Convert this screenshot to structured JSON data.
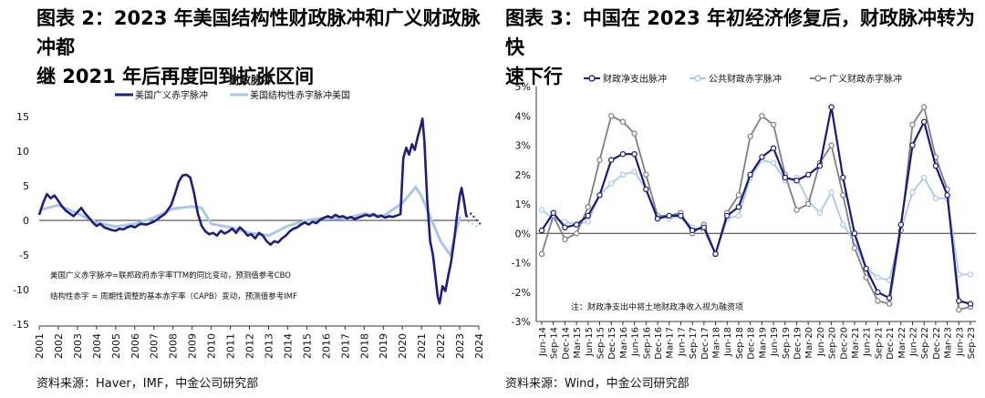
{
  "left": {
    "title_line1": "图表 2：2023 年美国结构性财政脉冲和广义财政脉冲都",
    "title_line2": "继 2021 年后再度回到扩张区间",
    "source": "资料来源：Haver，IMF，中金公司研究部",
    "chart_data": {
      "type": "line",
      "title": "财政脉冲",
      "unit_label": "（%）",
      "ylim": [
        -15,
        15
      ],
      "yticks": [
        15,
        10,
        5,
        0,
        -5,
        -10,
        -15
      ],
      "xlim": [
        2001,
        2024
      ],
      "xticks": [
        "2001",
        "2002",
        "2003",
        "2004",
        "2005",
        "2006",
        "2007",
        "2008",
        "2009",
        "2010",
        "2011",
        "2012",
        "2013",
        "2014",
        "2015",
        "2016",
        "2017",
        "2018",
        "2019",
        "2020",
        "2021",
        "2022",
        "2023",
        "2024"
      ],
      "notes": [
        "美国广义赤字脉冲=联邦政府赤字率TTM的同比变动，预测值参考CBO",
        "结构性赤字 = 周期性调整的基本赤字率（CAPB）变动，预测值参考IMF"
      ],
      "series": [
        {
          "name": "美国广义赤字脉冲",
          "color": "#1f1f7a",
          "points": [
            [
              2001.0,
              0.8
            ],
            [
              2001.2,
              2.5
            ],
            [
              2001.4,
              3.8
            ],
            [
              2001.6,
              3.2
            ],
            [
              2001.8,
              3.6
            ],
            [
              2002.0,
              2.8
            ],
            [
              2002.2,
              2.0
            ],
            [
              2002.4,
              1.4
            ],
            [
              2002.6,
              1.0
            ],
            [
              2002.8,
              0.6
            ],
            [
              2003.0,
              1.2
            ],
            [
              2003.2,
              1.8
            ],
            [
              2003.4,
              1.0
            ],
            [
              2003.6,
              0.4
            ],
            [
              2003.8,
              -0.3
            ],
            [
              2004.0,
              -0.8
            ],
            [
              2004.2,
              -0.5
            ],
            [
              2004.4,
              -1.0
            ],
            [
              2004.6,
              -1.2
            ],
            [
              2004.8,
              -1.4
            ],
            [
              2005.0,
              -1.5
            ],
            [
              2005.2,
              -1.2
            ],
            [
              2005.4,
              -1.3
            ],
            [
              2005.6,
              -1.0
            ],
            [
              2005.8,
              -0.8
            ],
            [
              2006.0,
              -1.0
            ],
            [
              2006.3,
              -0.5
            ],
            [
              2006.6,
              -0.6
            ],
            [
              2007.0,
              -0.2
            ],
            [
              2007.3,
              0.4
            ],
            [
              2007.6,
              1.0
            ],
            [
              2007.9,
              2.2
            ],
            [
              2008.1,
              3.8
            ],
            [
              2008.3,
              5.6
            ],
            [
              2008.5,
              6.5
            ],
            [
              2008.7,
              6.6
            ],
            [
              2008.9,
              6.2
            ],
            [
              2009.1,
              4.0
            ],
            [
              2009.3,
              1.0
            ],
            [
              2009.5,
              -0.8
            ],
            [
              2009.7,
              -1.6
            ],
            [
              2009.9,
              -2.0
            ],
            [
              2010.1,
              -1.8
            ],
            [
              2010.3,
              -2.2
            ],
            [
              2010.5,
              -1.5
            ],
            [
              2010.7,
              -1.9
            ],
            [
              2010.9,
              -1.6
            ],
            [
              2011.1,
              -1.2
            ],
            [
              2011.3,
              -1.8
            ],
            [
              2011.5,
              -1.0
            ],
            [
              2011.7,
              -1.5
            ],
            [
              2011.9,
              -2.2
            ],
            [
              2012.1,
              -2.0
            ],
            [
              2012.3,
              -2.6
            ],
            [
              2012.5,
              -1.8
            ],
            [
              2012.7,
              -2.2
            ],
            [
              2012.9,
              -3.0
            ],
            [
              2013.1,
              -3.5
            ],
            [
              2013.3,
              -3.0
            ],
            [
              2013.5,
              -3.2
            ],
            [
              2013.7,
              -2.6
            ],
            [
              2013.9,
              -2.2
            ],
            [
              2014.1,
              -1.6
            ],
            [
              2014.3,
              -1.2
            ],
            [
              2014.5,
              -1.0
            ],
            [
              2014.7,
              -0.6
            ],
            [
              2014.9,
              -0.3
            ],
            [
              2015.1,
              -0.6
            ],
            [
              2015.3,
              -0.2
            ],
            [
              2015.5,
              -0.4
            ],
            [
              2015.7,
              0.1
            ],
            [
              2015.9,
              0.4
            ],
            [
              2016.1,
              0.6
            ],
            [
              2016.3,
              0.4
            ],
            [
              2016.5,
              0.8
            ],
            [
              2016.7,
              0.5
            ],
            [
              2016.9,
              0.6
            ],
            [
              2017.1,
              0.3
            ],
            [
              2017.3,
              0.5
            ],
            [
              2017.5,
              0.2
            ],
            [
              2017.7,
              0.4
            ],
            [
              2017.9,
              0.6
            ],
            [
              2018.1,
              0.8
            ],
            [
              2018.3,
              0.6
            ],
            [
              2018.5,
              0.9
            ],
            [
              2018.7,
              0.5
            ],
            [
              2018.9,
              0.7
            ],
            [
              2019.1,
              0.4
            ],
            [
              2019.3,
              0.6
            ],
            [
              2019.5,
              0.5
            ],
            [
              2019.7,
              0.7
            ],
            [
              2019.9,
              0.9
            ],
            [
              2020.05,
              9.0
            ],
            [
              2020.2,
              10.5
            ],
            [
              2020.35,
              9.5
            ],
            [
              2020.5,
              11.0
            ],
            [
              2020.65,
              10.2
            ],
            [
              2020.8,
              12.0
            ],
            [
              2020.95,
              13.5
            ],
            [
              2021.05,
              14.7
            ],
            [
              2021.15,
              11.5
            ],
            [
              2021.3,
              3.0
            ],
            [
              2021.45,
              -3.0
            ],
            [
              2021.6,
              -5.0
            ],
            [
              2021.75,
              -8.5
            ],
            [
              2021.85,
              -11.0
            ],
            [
              2021.95,
              -12.0
            ],
            [
              2022.1,
              -9.5
            ],
            [
              2022.25,
              -10.2
            ],
            [
              2022.4,
              -8.0
            ],
            [
              2022.55,
              -6.0
            ],
            [
              2022.7,
              -3.0
            ],
            [
              2022.85,
              0.5
            ],
            [
              2023.0,
              3.5
            ],
            [
              2023.1,
              4.7
            ],
            [
              2023.2,
              3.2
            ],
            [
              2023.35,
              0.5
            ]
          ],
          "forecast": [
            [
              2023.35,
              0.5
            ],
            [
              2023.6,
              1.0
            ],
            [
              2023.9,
              0.0
            ],
            [
              2024.1,
              -0.6
            ]
          ]
        },
        {
          "name": "美国结构性赤字脉冲美国",
          "color": "#a9c7e8",
          "points": [
            [
              2001.0,
              1.5
            ],
            [
              2002.0,
              2.2
            ],
            [
              2003.0,
              1.0
            ],
            [
              2004.0,
              -0.3
            ],
            [
              2005.0,
              -0.9
            ],
            [
              2006.0,
              -0.5
            ],
            [
              2007.0,
              0.4
            ],
            [
              2008.0,
              1.7
            ],
            [
              2009.0,
              2.0
            ],
            [
              2009.5,
              1.8
            ],
            [
              2010.0,
              -0.5
            ],
            [
              2011.0,
              -1.0
            ],
            [
              2012.0,
              -1.8
            ],
            [
              2013.0,
              -2.2
            ],
            [
              2014.0,
              -0.8
            ],
            [
              2015.0,
              0.0
            ],
            [
              2016.0,
              0.4
            ],
            [
              2017.0,
              0.2
            ],
            [
              2018.0,
              1.0
            ],
            [
              2019.0,
              0.6
            ],
            [
              2020.0,
              2.5
            ],
            [
              2020.7,
              4.8
            ],
            [
              2021.0,
              3.5
            ],
            [
              2022.0,
              -3.0
            ],
            [
              2022.5,
              -5.0
            ],
            [
              2023.0,
              0.5
            ]
          ],
          "forecast": [
            [
              2023.0,
              0.5
            ],
            [
              2024.0,
              -1.0
            ]
          ]
        }
      ]
    }
  },
  "right": {
    "title_line1": "图表 3：中国在 2023 年初经济修复后，财政脉冲转为快",
    "title_line2": "速下行",
    "source": "资料来源：Wind，中金公司研究部",
    "chart_data": {
      "type": "line",
      "ylim": [
        -3,
        5
      ],
      "yticks": [
        "5%",
        "4%",
        "3%",
        "2%",
        "1%",
        "0%",
        "-1%",
        "-2%",
        "-3%"
      ],
      "categories": [
        "Jun-14",
        "Sep-14",
        "Dec-14",
        "Mar-15",
        "Jun-15",
        "Sep-15",
        "Dec-15",
        "Mar-16",
        "Jun-16",
        "Sep-16",
        "Dec-16",
        "Mar-17",
        "Jun-17",
        "Sep-17",
        "Dec-17",
        "Mar-18",
        "Jun-18",
        "Sep-18",
        "Dec-18",
        "Mar-19",
        "Jun-19",
        "Sep-19",
        "Dec-19",
        "Mar-20",
        "Jun-20",
        "Sep-20",
        "Dec-20",
        "Mar-21",
        "Jun-21",
        "Sep-21",
        "Dec-21",
        "Mar-22",
        "Jun-22",
        "Sep-22",
        "Dec-22",
        "Mar-23",
        "Jun-23",
        "Sep-23"
      ],
      "note": "注：财政净支出中将土地财政净收入视为融资项",
      "series": [
        {
          "name": "财政净支出脉冲",
          "color": "#1a1a78",
          "marker_fill": "#ffffff",
          "values": [
            0.1,
            0.7,
            0.2,
            0.3,
            0.6,
            1.3,
            2.5,
            2.7,
            2.7,
            1.5,
            0.5,
            0.6,
            0.6,
            0.1,
            0.2,
            -0.7,
            0.6,
            0.9,
            2.0,
            2.6,
            2.9,
            1.9,
            1.8,
            2.0,
            2.3,
            4.3,
            1.9,
            0.0,
            -1.2,
            -2.0,
            -2.2,
            0.3,
            3.0,
            3.8,
            2.3,
            1.3,
            -2.3,
            -2.4
          ]
        },
        {
          "name": "公共财政赤字脉冲",
          "color": "#a9c7e8",
          "marker_fill": "#ffffff",
          "values": [
            0.8,
            0.5,
            0.4,
            0.3,
            0.4,
            1.3,
            1.7,
            2.0,
            2.1,
            1.5,
            0.6,
            0.5,
            0.6,
            0.2,
            0.1,
            -0.7,
            0.5,
            0.6,
            1.9,
            2.5,
            2.4,
            1.8,
            1.9,
            1.1,
            0.7,
            1.4,
            0.3,
            -0.3,
            -1.2,
            -1.5,
            -1.6,
            0.1,
            1.4,
            1.9,
            1.2,
            1.2,
            -1.4,
            -1.4
          ]
        },
        {
          "name": "广义财政赤字脉冲",
          "color": "#7f7f7f",
          "marker_fill": "#ffffff",
          "values": [
            -0.7,
            0.6,
            -0.2,
            0.0,
            0.9,
            2.5,
            4.0,
            3.8,
            3.4,
            2.0,
            0.6,
            0.6,
            0.7,
            0.0,
            0.3,
            -0.7,
            0.7,
            1.3,
            3.3,
            4.0,
            3.7,
            2.0,
            0.8,
            1.0,
            2.4,
            3.0,
            1.3,
            -0.5,
            -1.5,
            -2.3,
            -2.4,
            0.1,
            3.7,
            4.3,
            2.6,
            1.5,
            -2.6,
            -2.5
          ]
        }
      ]
    }
  }
}
